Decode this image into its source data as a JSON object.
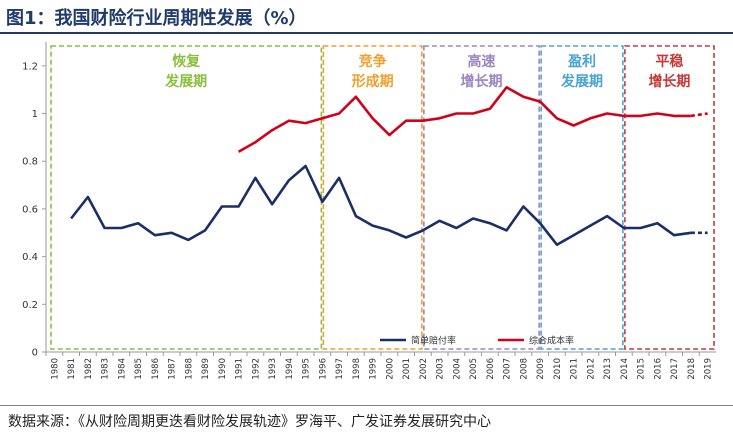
{
  "title": "图1：我国财险行业周期性发展（%）",
  "source": "数据来源：《从财险周期更迭看财险发展轨迹》罗海平、广发证券发展研究中心",
  "chart_data": {
    "type": "line",
    "x": [
      1980,
      1981,
      1982,
      1983,
      1984,
      1985,
      1986,
      1987,
      1988,
      1989,
      1990,
      1991,
      1992,
      1993,
      1994,
      1995,
      1996,
      1997,
      1998,
      1999,
      2000,
      2001,
      2002,
      2003,
      2004,
      2005,
      2006,
      2007,
      2008,
      2009,
      2010,
      2011,
      2012,
      2013,
      2014,
      2015,
      2016,
      2017,
      2018,
      2019
    ],
    "ylim": [
      0,
      1.3
    ],
    "yticks": [
      0,
      0.2,
      0.4,
      0.6,
      0.8,
      1,
      1.2
    ],
    "series": [
      {
        "name": "简单赔付率",
        "color": "#1a2f66",
        "forecast_from": 2018,
        "values": [
          null,
          0.56,
          0.65,
          0.52,
          0.52,
          0.54,
          0.49,
          0.5,
          0.47,
          0.51,
          0.61,
          0.61,
          0.73,
          0.62,
          0.72,
          0.78,
          0.63,
          0.73,
          0.57,
          0.53,
          0.51,
          0.48,
          0.51,
          0.55,
          0.52,
          0.56,
          0.54,
          0.51,
          0.61,
          0.54,
          0.45,
          0.49,
          0.53,
          0.57,
          0.52,
          0.52,
          0.54,
          0.49,
          0.5,
          0.5
        ]
      },
      {
        "name": "综合成本率",
        "color": "#d0021b",
        "forecast_from": 2018,
        "values": [
          null,
          null,
          null,
          null,
          null,
          null,
          null,
          null,
          null,
          null,
          null,
          0.84,
          0.88,
          0.93,
          0.97,
          0.96,
          0.98,
          1.0,
          1.07,
          0.98,
          0.91,
          0.97,
          0.97,
          0.98,
          1.0,
          1.0,
          1.02,
          1.11,
          1.07,
          1.05,
          0.98,
          0.95,
          0.98,
          1.0,
          0.99,
          0.99,
          1.0,
          0.99,
          0.99,
          1.0
        ]
      }
    ],
    "phases": [
      {
        "label1": "恢复",
        "label2": "发展期",
        "start": 1980,
        "end": 1996,
        "color": "#8cbf3f"
      },
      {
        "label1": "竞争",
        "label2": "形成期",
        "start": 1996,
        "end": 2002,
        "color": "#f0a030"
      },
      {
        "label1": "高速",
        "label2": "增长期",
        "start": 2002,
        "end": 2009,
        "color": "#9b86c0"
      },
      {
        "label1": "盈利",
        "label2": "发展期",
        "start": 2009,
        "end": 2014,
        "color": "#4aa3d0"
      },
      {
        "label1": "平稳",
        "label2": "增长期",
        "start": 2014,
        "end": 2019,
        "color": "#c43a3a"
      }
    ]
  }
}
